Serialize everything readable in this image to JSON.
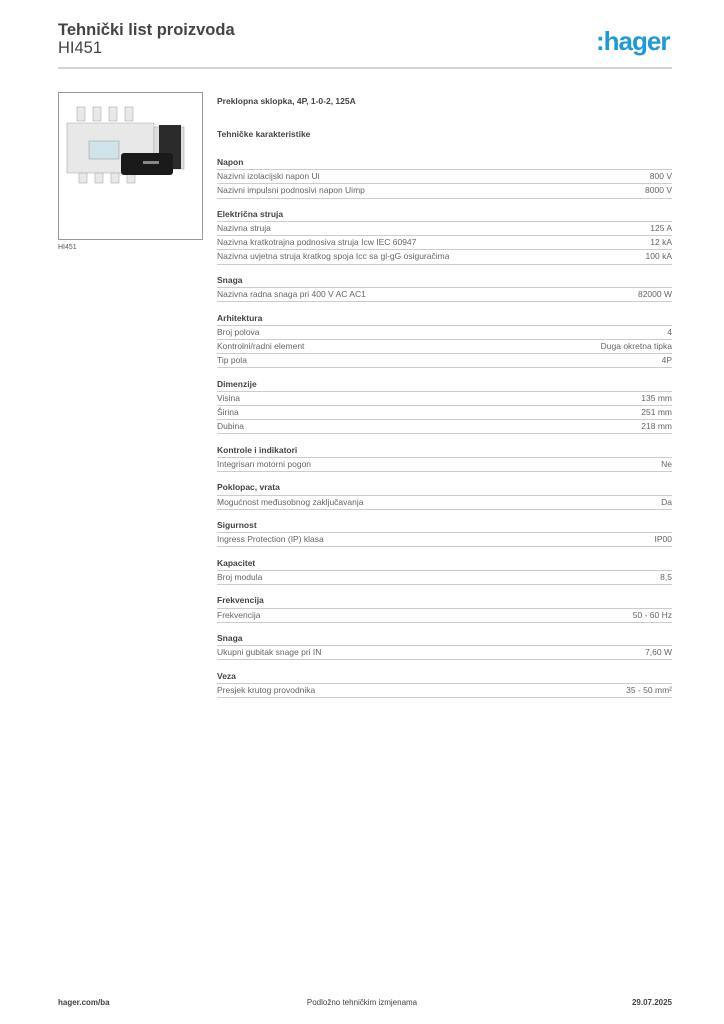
{
  "header": {
    "title": "Tehnički list proizvoda",
    "product_code": "HI451",
    "logo": ":hager",
    "logo_color": "#1f9ad8"
  },
  "product": {
    "image_caption": "HI451",
    "name": "Preklopna sklopka, 4P, 1-0-2, 125A",
    "section_title": "Tehničke karakteristike"
  },
  "sections": [
    {
      "title": "Napon",
      "rows": [
        {
          "label": "Nazivni izolacijski napon Ui",
          "value": "800 V"
        },
        {
          "label": "Nazivni impulsni podnosivi napon Uimp",
          "value": "8000 V"
        }
      ]
    },
    {
      "title": "Električna struja",
      "rows": [
        {
          "label": "Nazivna struja",
          "value": "125 A"
        },
        {
          "label": "Nazivna kratkotrajna podnosiva struja Icw IEC 60947",
          "value": "12 kA"
        },
        {
          "label": "Nazivna uvjetna struja kratkog spoja Icc sa gl-gG osiguračima",
          "value": "100 kA"
        }
      ]
    },
    {
      "title": "Snaga",
      "rows": [
        {
          "label": "Nazivna radna snaga pri 400 V AC AC1",
          "value": "82000 W"
        }
      ]
    },
    {
      "title": "Arhitektura",
      "rows": [
        {
          "label": "Broj polova",
          "value": "4"
        },
        {
          "label": "Kontrolni/radni element",
          "value": "Duga okretna tipka"
        },
        {
          "label": "Tip pola",
          "value": "4P"
        }
      ]
    },
    {
      "title": "Dimenzije",
      "rows": [
        {
          "label": "Visina",
          "value": "135 mm"
        },
        {
          "label": "Širina",
          "value": "251 mm"
        },
        {
          "label": "Dubina",
          "value": "218 mm"
        }
      ]
    },
    {
      "title": "Kontrole i indikatori",
      "rows": [
        {
          "label": "Integrisan motorni pogon",
          "value": "Ne"
        }
      ]
    },
    {
      "title": "Poklopac, vrata",
      "rows": [
        {
          "label": "Mogućnost međusobnog zaključavanja",
          "value": "Da"
        }
      ]
    },
    {
      "title": "Sigurnost",
      "rows": [
        {
          "label": "Ingress Protection (IP) klasa",
          "value": "IP00"
        }
      ]
    },
    {
      "title": "Kapacitet",
      "rows": [
        {
          "label": "Broj modula",
          "value": "8,5"
        }
      ]
    },
    {
      "title": "Frekvencija",
      "rows": [
        {
          "label": "Frekvencija",
          "value": "50 - 60 Hz"
        }
      ]
    },
    {
      "title": "Snaga",
      "rows": [
        {
          "label": "Ukupni gubitak snage pri IN",
          "value": "7,60 W"
        }
      ]
    },
    {
      "title": "Veza",
      "rows": [
        {
          "label": "Presjek krutog provodnika",
          "value": "35 - 50 mm²"
        }
      ]
    }
  ],
  "footer": {
    "website": "hager.com/ba",
    "note": "Podložno tehničkim izmjenama",
    "date": "29.07.2025"
  }
}
